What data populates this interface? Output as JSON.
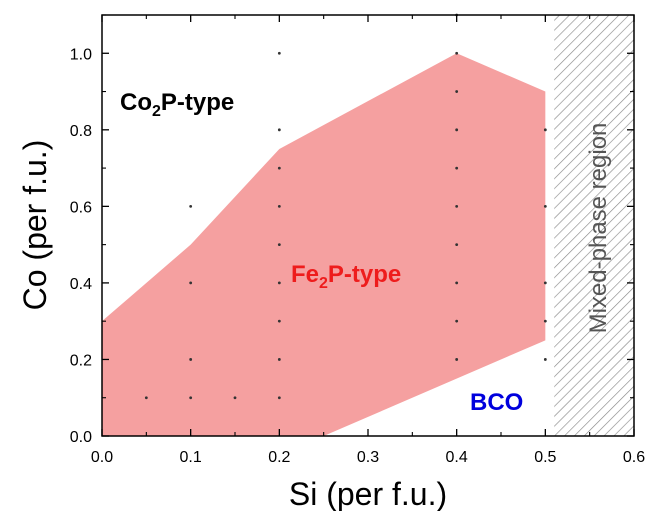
{
  "chart_data": {
    "type": "scatter",
    "xlabel": "Si (per f.u.)",
    "ylabel": "Co (per f.u.)",
    "xlim": [
      0.0,
      0.6
    ],
    "ylim": [
      0.0,
      1.1
    ],
    "x_ticks": [
      "0.0",
      "0.1",
      "0.2",
      "0.3",
      "0.4",
      "0.5",
      "0.6"
    ],
    "y_ticks": [
      "0.0",
      "0.2",
      "0.4",
      "0.6",
      "0.8",
      "1.0"
    ],
    "grid": false,
    "regions": [
      {
        "label_main": "Fe",
        "label_sub": "2",
        "label_rest": "P-type",
        "label_color": "#ee1c1c",
        "fill": "#f5a0a0",
        "polygon": [
          [
            0,
            0.3
          ],
          [
            0.1,
            0.5
          ],
          [
            0.2,
            0.75
          ],
          [
            0.4,
            1.0
          ],
          [
            0.5,
            0.9
          ],
          [
            0.5,
            0.25
          ],
          [
            0.25,
            0.0
          ],
          [
            0,
            0.0
          ]
        ]
      },
      {
        "label_main": "Co",
        "label_sub": "2",
        "label_rest": "P-type",
        "label_color": "#000000"
      },
      {
        "label_main": "BCO",
        "label_color": "#0000dd"
      },
      {
        "label_main": "Mixed-phase region",
        "label_color": "#555555",
        "x_range": [
          0.51,
          0.6
        ]
      }
    ],
    "points": [
      [
        0.05,
        0.1
      ],
      [
        0.1,
        0.1
      ],
      [
        0.15,
        0.1
      ],
      [
        0.2,
        0.1
      ],
      [
        0.1,
        0.2
      ],
      [
        0.2,
        0.2
      ],
      [
        0.4,
        0.2
      ],
      [
        0.5,
        0.2
      ],
      [
        0.2,
        0.3
      ],
      [
        0.4,
        0.3
      ],
      [
        0.5,
        0.3
      ],
      [
        0.1,
        0.4
      ],
      [
        0.2,
        0.4
      ],
      [
        0.4,
        0.4
      ],
      [
        0.5,
        0.4
      ],
      [
        0.2,
        0.5
      ],
      [
        0.4,
        0.5
      ],
      [
        0.1,
        0.6
      ],
      [
        0.2,
        0.6
      ],
      [
        0.4,
        0.6
      ],
      [
        0.5,
        0.6
      ],
      [
        0.2,
        0.7
      ],
      [
        0.4,
        0.7
      ],
      [
        0.2,
        0.8
      ],
      [
        0.4,
        0.8
      ],
      [
        0.5,
        0.8
      ],
      [
        0.4,
        0.9
      ],
      [
        0.2,
        1.0
      ],
      [
        0.4,
        1.0
      ],
      [
        0.4,
        1.1
      ]
    ]
  }
}
